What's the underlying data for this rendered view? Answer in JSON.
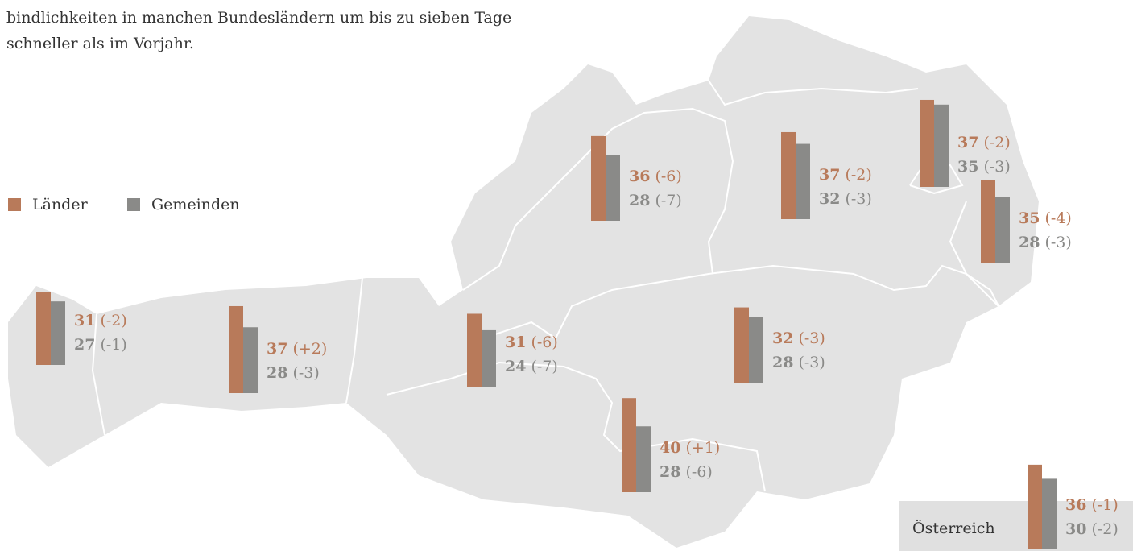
{
  "intro": [
    "bindlichkeiten in manchen Bundesländern um bis zu sieben Tage",
    "schneller als im Vorjahr."
  ],
  "chart_data": {
    "type": "bar",
    "categories": [
      null,
      null,
      null,
      null,
      null,
      null,
      null,
      null,
      null,
      "Österreich"
    ],
    "series": [
      {
        "name": "Länder",
        "color": "#b87a5a",
        "values": [
          31,
          37,
          31,
          36,
          37,
          37,
          35,
          32,
          40,
          36
        ],
        "changes": [
          "(-2)",
          "(+2)",
          "(-6)",
          "(-6)",
          "(-2)",
          "(-2)",
          "(-4)",
          "(-3)",
          "(+1)",
          "(-1)"
        ]
      },
      {
        "name": "Gemeinden",
        "color": "#8a8a88",
        "values": [
          27,
          28,
          24,
          28,
          32,
          35,
          28,
          28,
          28,
          30
        ],
        "changes": [
          "(-1)",
          "(-3)",
          "(-7)",
          "(-7)",
          "(-3)",
          "(-3)",
          "(-3)",
          "(-3)",
          "(-6)",
          "(-2)"
        ]
      }
    ]
  }
}
